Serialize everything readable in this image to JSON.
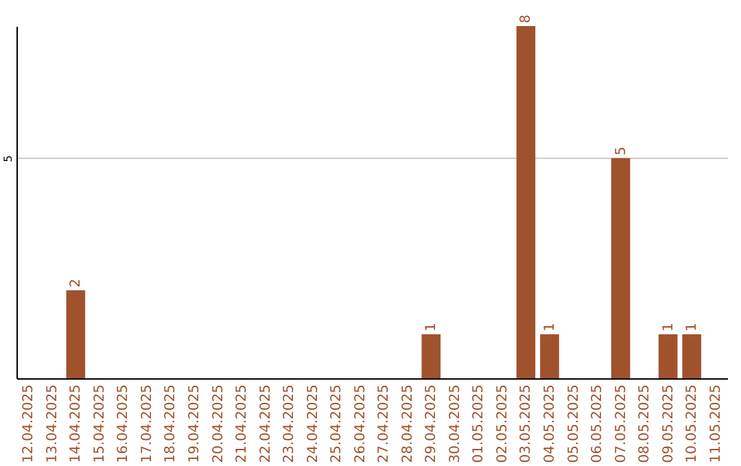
{
  "chart_data": {
    "type": "bar",
    "categories": [
      "12.04.2025",
      "13.04.2025",
      "14.04.2025",
      "15.04.2025",
      "16.04.2025",
      "17.04.2025",
      "18.04.2025",
      "19.04.2025",
      "20.04.2025",
      "21.04.2025",
      "22.04.2025",
      "23.04.2025",
      "24.04.2025",
      "25.04.2025",
      "26.04.2025",
      "27.04.2025",
      "28.04.2025",
      "29.04.2025",
      "30.04.2025",
      "01.05.2025",
      "02.05.2025",
      "03.05.2025",
      "04.05.2025",
      "05.05.2025",
      "06.05.2025",
      "07.05.2025",
      "08.05.2025",
      "09.05.2025",
      "10.05.2025",
      "11.05.2025"
    ],
    "values": [
      0,
      0,
      2,
      0,
      0,
      0,
      0,
      0,
      0,
      0,
      0,
      0,
      0,
      0,
      0,
      0,
      0,
      1,
      0,
      0,
      0,
      8,
      1,
      0,
      0,
      5,
      0,
      1,
      1,
      0
    ],
    "value_labels": [
      null,
      null,
      "2",
      null,
      null,
      null,
      null,
      null,
      null,
      null,
      null,
      null,
      null,
      null,
      null,
      null,
      null,
      "1",
      null,
      null,
      null,
      "8",
      "1",
      null,
      null,
      "5",
      null,
      "1",
      "1",
      null
    ],
    "color": "#a0522d",
    "ylim": [
      0,
      8
    ],
    "yticks": [
      5
    ],
    "grid": "y"
  }
}
